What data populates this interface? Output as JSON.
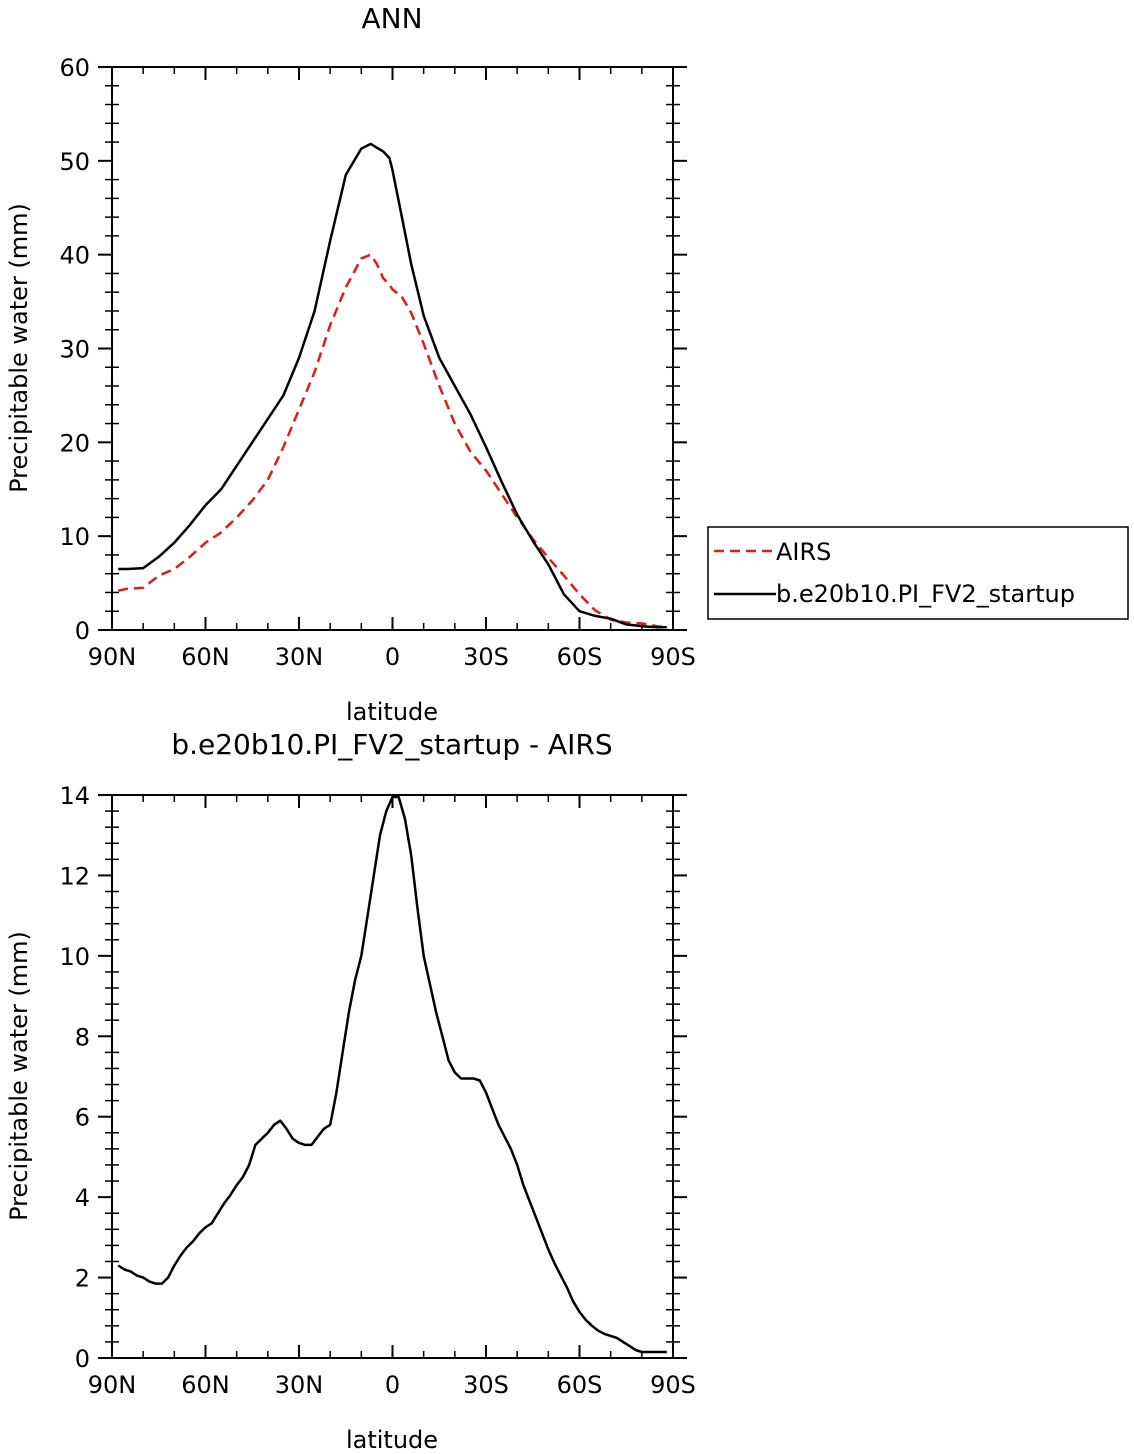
{
  "colors": {
    "airs": "#e31a1c",
    "model": "#000000"
  },
  "chart_data": [
    {
      "type": "line",
      "title": "ANN",
      "xlabel": "latitude",
      "ylabel": "Precipitable water (mm)",
      "xlim": [
        90,
        -90
      ],
      "ylim": [
        0,
        60
      ],
      "xticks": [
        90,
        60,
        30,
        0,
        -30,
        -60,
        -90
      ],
      "xtick_labels": [
        "90N",
        "60N",
        "30N",
        "0",
        "30S",
        "60S",
        "90S"
      ],
      "yticks": [
        0,
        10,
        20,
        30,
        40,
        50,
        60
      ],
      "ytick_labels": [
        "0",
        "10",
        "20",
        "30",
        "40",
        "50",
        "60"
      ],
      "legend": {
        "placement": "right",
        "entries": [
          "AIRS",
          "b.e20b10.PI_FV2_startup"
        ]
      },
      "series": [
        {
          "name": "AIRS",
          "style": "dashed",
          "color": "#e31a1c",
          "x": [
            88,
            85,
            80,
            75,
            70,
            65,
            60,
            55,
            50,
            45,
            40,
            35,
            30,
            25,
            20,
            15,
            10,
            7,
            5,
            3,
            1,
            0,
            -3,
            -6,
            -10,
            -15,
            -20,
            -25,
            -30,
            -35,
            -40,
            -45,
            -50,
            -55,
            -60,
            -65,
            -70,
            -75,
            -80,
            -85,
            -88
          ],
          "y": [
            4.2,
            4.4,
            4.5,
            5.8,
            6.5,
            7.8,
            9.3,
            10.4,
            12.0,
            13.8,
            16.0,
            19.5,
            23.5,
            27.5,
            32.5,
            36.5,
            39.6,
            40.0,
            39.0,
            37.5,
            36.8,
            36.3,
            35.5,
            33.8,
            30.5,
            26.0,
            22.0,
            19.0,
            17.0,
            14.5,
            12.0,
            9.7,
            7.7,
            5.8,
            3.8,
            2.1,
            1.1,
            0.8,
            0.7,
            0.4,
            0.3
          ]
        },
        {
          "name": "b.e20b10.PI_FV2_startup",
          "style": "solid",
          "color": "#000000",
          "x": [
            88,
            85,
            80,
            75,
            70,
            65,
            60,
            55,
            50,
            45,
            40,
            35,
            30,
            25,
            20,
            15,
            10,
            7,
            5,
            3,
            1,
            0,
            -3,
            -6,
            -10,
            -15,
            -20,
            -25,
            -30,
            -35,
            -40,
            -45,
            -50,
            -55,
            -60,
            -65,
            -70,
            -75,
            -80,
            -85,
            -88
          ],
          "y": [
            6.5,
            6.5,
            6.6,
            7.8,
            9.3,
            11.2,
            13.3,
            15.0,
            17.5,
            20.0,
            22.5,
            25.0,
            29.0,
            34.0,
            41.5,
            48.5,
            51.3,
            51.8,
            51.4,
            51.0,
            50.3,
            49.0,
            44.0,
            39.0,
            33.5,
            29.0,
            26.0,
            23.0,
            19.5,
            15.8,
            12.3,
            9.5,
            7.0,
            3.8,
            2.0,
            1.5,
            1.2,
            0.6,
            0.4,
            0.3,
            0.3
          ]
        }
      ]
    },
    {
      "type": "line",
      "title": "b.e20b10.PI_FV2_startup - AIRS",
      "xlabel": "latitude",
      "ylabel": "Precipitable water (mm)",
      "xlim": [
        90,
        -90
      ],
      "ylim": [
        0,
        14
      ],
      "xticks": [
        90,
        60,
        30,
        0,
        -30,
        -60,
        -90
      ],
      "xtick_labels": [
        "90N",
        "60N",
        "30N",
        "0",
        "30S",
        "60S",
        "90S"
      ],
      "yticks": [
        0,
        2,
        4,
        6,
        8,
        10,
        12,
        14
      ],
      "ytick_labels": [
        "0",
        "2",
        "4",
        "6",
        "8",
        "10",
        "12",
        "14"
      ],
      "series": [
        {
          "style": "solid",
          "color": "#000000",
          "x": [
            88,
            86,
            84,
            82,
            80,
            78,
            76,
            74,
            72,
            70,
            68,
            66,
            64,
            62,
            60,
            58,
            56,
            54,
            52,
            50,
            48,
            46,
            44,
            42,
            40,
            38,
            36,
            34,
            32,
            30,
            28,
            26,
            24,
            22,
            20,
            18,
            16,
            14,
            12,
            10,
            8,
            6,
            4,
            2,
            0,
            -2,
            -4,
            -6,
            -8,
            -10,
            -12,
            -14,
            -16,
            -18,
            -20,
            -22,
            -24,
            -26,
            -28,
            -30,
            -32,
            -34,
            -36,
            -38,
            -40,
            -42,
            -44,
            -46,
            -48,
            -50,
            -52,
            -54,
            -56,
            -58,
            -60,
            -62,
            -64,
            -66,
            -68,
            -70,
            -72,
            -74,
            -76,
            -78,
            -80,
            -82,
            -84,
            -86,
            -88
          ],
          "y": [
            2.3,
            2.2,
            2.15,
            2.05,
            2.0,
            1.9,
            1.85,
            1.85,
            2.0,
            2.3,
            2.55,
            2.75,
            2.9,
            3.1,
            3.25,
            3.35,
            3.6,
            3.85,
            4.05,
            4.3,
            4.5,
            4.8,
            5.3,
            5.45,
            5.6,
            5.8,
            5.9,
            5.7,
            5.45,
            5.35,
            5.3,
            5.3,
            5.5,
            5.7,
            5.8,
            6.6,
            7.6,
            8.6,
            9.4,
            10.0,
            11.0,
            12.0,
            13.0,
            13.6,
            13.95,
            13.95,
            13.4,
            12.5,
            11.2,
            10.0,
            9.3,
            8.6,
            8.0,
            7.4,
            7.1,
            6.95,
            6.95,
            6.95,
            6.9,
            6.6,
            6.2,
            5.8,
            5.5,
            5.2,
            4.8,
            4.3,
            3.9,
            3.5,
            3.1,
            2.7,
            2.35,
            2.05,
            1.75,
            1.4,
            1.15,
            0.95,
            0.8,
            0.68,
            0.6,
            0.55,
            0.5,
            0.4,
            0.3,
            0.2,
            0.15,
            0.15,
            0.15,
            0.15,
            0.15
          ]
        }
      ]
    }
  ]
}
